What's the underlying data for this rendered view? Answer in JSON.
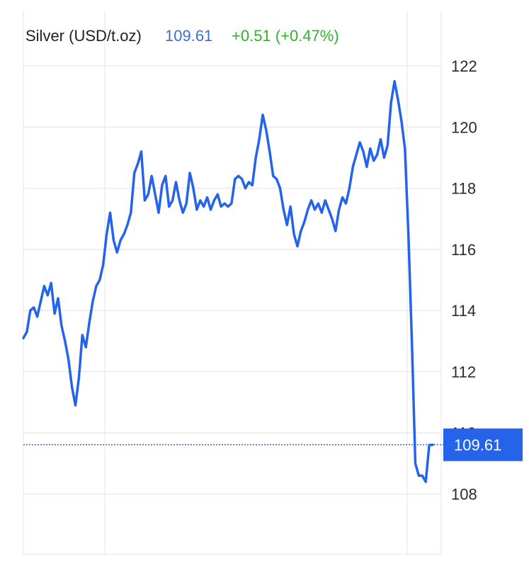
{
  "header": {
    "instrument": "Silver (USD/t.oz)",
    "last_price": "109.61",
    "change": "+0.51 (+0.47%)"
  },
  "colors": {
    "line": "#2563eb",
    "price_text": "#3b6fd8",
    "change_text": "#2bb52b",
    "grid": "#e6e6e6",
    "tag_bg": "#2563eb"
  },
  "chart_data": {
    "type": "line",
    "title": "Silver (USD/t.oz)",
    "xlabel": "",
    "ylabel": "",
    "ylim": [
      106.5,
      123.5
    ],
    "yticks": [
      108,
      110,
      112,
      114,
      116,
      118,
      120,
      122
    ],
    "ytick_labels": [
      "108",
      "110",
      "112",
      "114",
      "116",
      "118",
      "120",
      "122"
    ],
    "grid": true,
    "current_value": 109.61,
    "current_value_label": "109.61",
    "series": [
      {
        "values": [
          113.1,
          113.3,
          114.0,
          114.1,
          113.8,
          114.3,
          114.8,
          114.5,
          114.9,
          113.9,
          114.4,
          113.5,
          113.0,
          112.4,
          111.5,
          110.9,
          111.8,
          113.2,
          112.8,
          113.6,
          114.3,
          114.8,
          115.0,
          115.5,
          116.5,
          117.2,
          116.3,
          115.9,
          116.3,
          116.5,
          116.8,
          117.2,
          118.5,
          118.8,
          119.2,
          117.6,
          117.8,
          118.4,
          117.8,
          117.2,
          118.1,
          118.4,
          117.4,
          117.6,
          118.2,
          117.6,
          117.2,
          117.5,
          118.5,
          118.0,
          117.3,
          117.6,
          117.4,
          117.7,
          117.3,
          117.6,
          117.8,
          117.4,
          117.5,
          117.4,
          117.5,
          118.3,
          118.4,
          118.3,
          118.0,
          118.2,
          118.1,
          119.0,
          119.6,
          120.4,
          119.9,
          119.2,
          118.4,
          118.3,
          118.0,
          117.3,
          116.8,
          117.4,
          116.5,
          116.1,
          116.6,
          116.9,
          117.3,
          117.6,
          117.3,
          117.5,
          117.2,
          117.6,
          117.3,
          117.0,
          116.6,
          117.3,
          117.7,
          117.5,
          118.0,
          118.7,
          119.1,
          119.5,
          119.2,
          118.7,
          119.3,
          118.9,
          119.1,
          119.6,
          119.0,
          119.4,
          120.8,
          121.5,
          120.9,
          120.2,
          119.3,
          116.5,
          113.0,
          109.0,
          108.6,
          108.6,
          108.4,
          109.6,
          109.61
        ]
      }
    ]
  }
}
